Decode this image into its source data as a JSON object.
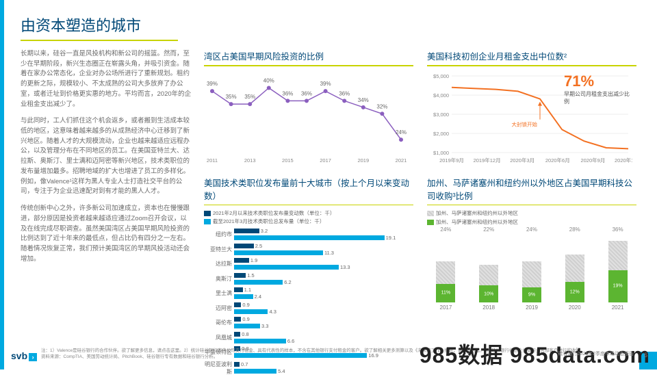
{
  "title": "由资本塑造的城市",
  "paragraphs": [
    "长期以来，硅谷一直是风投机构和新公司的摇篮。然而，至少在早期阶段，新兴生态圈正在崭露头角，并吸引资金。随着在家办公常态化，企业对办公场所进行了重新规划。租约的更新之际，规模较小、不太成熟的公司大多放弃了办公室，或者迁址到价格更实惠的地方。平均而言，2020年的企业租金支出减少了。",
    "与此同时，工人们抓住这个机会返乡，或者搬到生活成本较低的地区，这意味着越来越多的从成熟经济中心迁移到了新兴地区。随着人才的大规模流动，企业也越来越适应远程办公，以及管理分布在不同地区的员工。在美国亚特兰大、达拉斯、奥斯汀、里士满和迈阿密等新兴地区，技术类职位的发布量增加最多。招聘地域的扩大也增进了员工的多样化。例如，像Valence¹这样为黑人专业人士打造社交平台的公司，专注于为企业迅速配对到有才能的黑人人才。",
    "传统创新中心之外，许多新公司加速成立，资本也在慢慢跟进，部分原因是投资者越来越适应通过Zoom召开会议，以及在线完成尽职调查。虽然美国湾区占美国早期风险投资的比例达到了近十年来的最低点，但占比仍有四分之一左右。随着情况恢复正常，我们预计美国湾区的早期风投活动还会增加。"
  ],
  "chart1": {
    "title": "湾区占美国早期风险投资的比例",
    "type": "line",
    "color_line": "#8b5fbf",
    "color_marker": "#8b5fbf",
    "background": "#ffffff",
    "years": [
      "2011",
      "",
      "2013",
      "",
      "2015",
      "",
      "2017",
      "",
      "2019",
      "",
      "2021"
    ],
    "values_pct": [
      39,
      35,
      35,
      40,
      36,
      36,
      39,
      36,
      34,
      32,
      24
    ],
    "ylim": [
      20,
      42
    ],
    "label_fontsize": 8
  },
  "chart2": {
    "title": "美国科技初创企业月租金支出中位数²",
    "type": "line",
    "color_line": "#f37021",
    "x_labels": [
      "2019年9月",
      "2019年12月",
      "2020年3月",
      "2020年6月",
      "2020年9月",
      "2020年12月"
    ],
    "y_ticks": [
      "$1,000",
      "$2,000",
      "$3,000",
      "$4,000",
      "$5,000"
    ],
    "values": [
      4400,
      4350,
      4300,
      4200,
      3800,
      2200,
      1600,
      1250,
      1200
    ],
    "ylim": [
      1000,
      5000
    ],
    "annotation_big": "71%",
    "annotation_sub": "早期公司月租金支出减少比例",
    "annotation_arrow": "大封锁开始"
  },
  "chart3": {
    "title": "美国技术类职位发布量前十大城市（按上个月以来变动数）",
    "type": "double-bar",
    "legend": [
      {
        "label": "2021年2月以来技术类职位发布量变动数（单位：千）",
        "color": "#004877"
      },
      {
        "label": "截至2021年3月技术类职位总发布量（单位：千）",
        "color": "#00a9e0"
      }
    ],
    "rows": [
      {
        "cat": "纽约市",
        "dark": 3.2,
        "light": 19.1
      },
      {
        "cat": "亚特兰大",
        "dark": 2.5,
        "light": 11.3
      },
      {
        "cat": "达拉斯",
        "dark": 1.9,
        "light": 13.3
      },
      {
        "cat": "奥斯汀",
        "dark": 1.5,
        "light": 6.2
      },
      {
        "cat": "里士满",
        "dark": 1.1,
        "light": 2.4
      },
      {
        "cat": "迈阿密",
        "dark": 0.9,
        "light": 4.3
      },
      {
        "cat": "哥伦布",
        "dark": 0.9,
        "light": 3.3
      },
      {
        "cat": "凤凰城",
        "dark": 0.8,
        "light": 6.6
      },
      {
        "cat": "华盛顿特区",
        "dark": 0.8,
        "light": 16.9
      },
      {
        "cat": "明尼亚波利斯",
        "dark": 0.7,
        "light": 5.4
      }
    ],
    "max_light": 20
  },
  "chart4": {
    "title": "加州、马萨诸塞州和纽约州以外地区占美国早期科技公司收购³比例",
    "type": "stacked-bar",
    "legend": [
      {
        "label": "加州、马萨诸塞州和纽约州以外地区",
        "color": "gray"
      },
      {
        "label": "加州、马萨诸塞州和纽约州以外地区",
        "color": "#5cb531"
      }
    ],
    "years": [
      "2017",
      "2018",
      "2019",
      "2020",
      "2021"
    ],
    "green_pct": [
      11,
      10,
      9,
      12,
      19
    ],
    "gray_pct_top": [
      24,
      22,
      24,
      28,
      36
    ],
    "max_total": 40
  },
  "footnote": "注：1）Valence是硅谷银行的合作伙伴。欲了解更多信息，请点击这里。2）统计硅谷银行客户公司支付租金、具有代表性的样本，不含在其他银行支付租金的客户。欲了解相关更多测算以及《未来的工作》报告，请点击这里。3）硅谷银行初创企业银行业务部客户进行的收购。",
  "source": "资料来源：CompTIA、美国劳动统计局、PitchBook、硅谷银行专有数据和硅谷银行分析。",
  "logo": "svb",
  "source_right": "硅谷银行2021年2季度市场动态报告",
  "watermark": "985数据 985data.com",
  "page_number": "6"
}
